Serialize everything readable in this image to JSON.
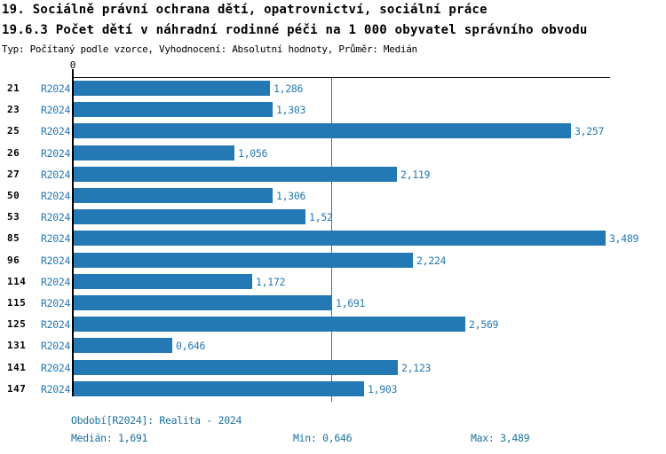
{
  "header": {
    "title_line1": "19. Sociálně právní ochrana dětí, opatrovnictví, sociální práce",
    "title_line2": "19.6.3 Počet dětí v náhradní rodinné péči na 1 000 obyvatel správního obvodu",
    "subtitle": "Typ: Počítaný podle vzorce, Vyhodnocení: Absolutní hodnoty, Průměr: Medián"
  },
  "chart_data": {
    "type": "bar",
    "orientation": "horizontal",
    "series_label": "R2024",
    "categories": [
      "21",
      "23",
      "25",
      "26",
      "27",
      "50",
      "53",
      "85",
      "96",
      "114",
      "115",
      "125",
      "131",
      "141",
      "147"
    ],
    "values": [
      1.286,
      1.303,
      3.257,
      1.056,
      2.119,
      1.306,
      1.52,
      3.489,
      2.224,
      1.172,
      1.691,
      2.569,
      0.646,
      2.123,
      1.903
    ],
    "value_labels": [
      "1,286",
      "1,303",
      "3,257",
      "1,056",
      "2,119",
      "1,306",
      "1,52",
      "3,489",
      "2,224",
      "1,172",
      "1,691",
      "2,569",
      "0,646",
      "2,123",
      "1,903"
    ],
    "axis": {
      "zero_label": "0",
      "xmin": 0,
      "xmax_estimate": 3.52,
      "median_value": 1.691
    },
    "legend_position": "none",
    "grid": "median-line-only",
    "bar_color": "#2478b4",
    "label_color": "#2478b4",
    "median_line_color": "#2478b4"
  },
  "footer": {
    "period": "Období[R2024]: Realita - 2024",
    "median": "Medián: 1,691",
    "min": "Min: 0,646",
    "max": "Max: 3,489",
    "text_color": "#19709f"
  }
}
